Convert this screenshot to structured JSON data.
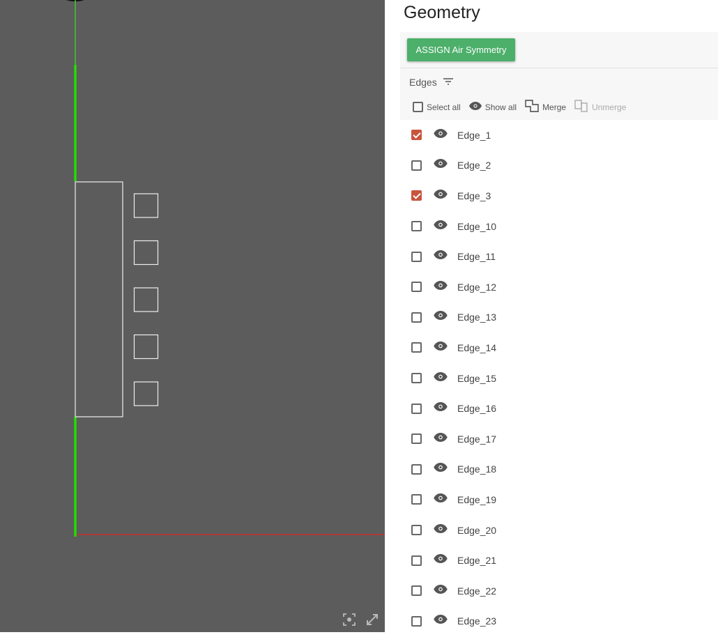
{
  "panel": {
    "title": "Geometry",
    "assign_button": "ASSIGN Air Symmetry",
    "edges_label": "Edges",
    "actions": {
      "select_all": "Select all",
      "show_all": "Show all",
      "merge": "Merge",
      "unmerge": "Unmerge"
    }
  },
  "colors": {
    "accent_green": "#4caf6a",
    "checked": "#c8553d",
    "viewport_bg": "#5c5c5c",
    "edge_highlight": "#22dd00"
  },
  "edges": [
    {
      "name": "Edge_1",
      "checked": true
    },
    {
      "name": "Edge_2",
      "checked": false
    },
    {
      "name": "Edge_3",
      "checked": true
    },
    {
      "name": "Edge_10",
      "checked": false
    },
    {
      "name": "Edge_11",
      "checked": false
    },
    {
      "name": "Edge_12",
      "checked": false
    },
    {
      "name": "Edge_13",
      "checked": false
    },
    {
      "name": "Edge_14",
      "checked": false
    },
    {
      "name": "Edge_15",
      "checked": false
    },
    {
      "name": "Edge_16",
      "checked": false
    },
    {
      "name": "Edge_17",
      "checked": false
    },
    {
      "name": "Edge_18",
      "checked": false
    },
    {
      "name": "Edge_19",
      "checked": false
    },
    {
      "name": "Edge_20",
      "checked": false
    },
    {
      "name": "Edge_21",
      "checked": false
    },
    {
      "name": "Edge_22",
      "checked": false
    },
    {
      "name": "Edge_23",
      "checked": false
    }
  ]
}
